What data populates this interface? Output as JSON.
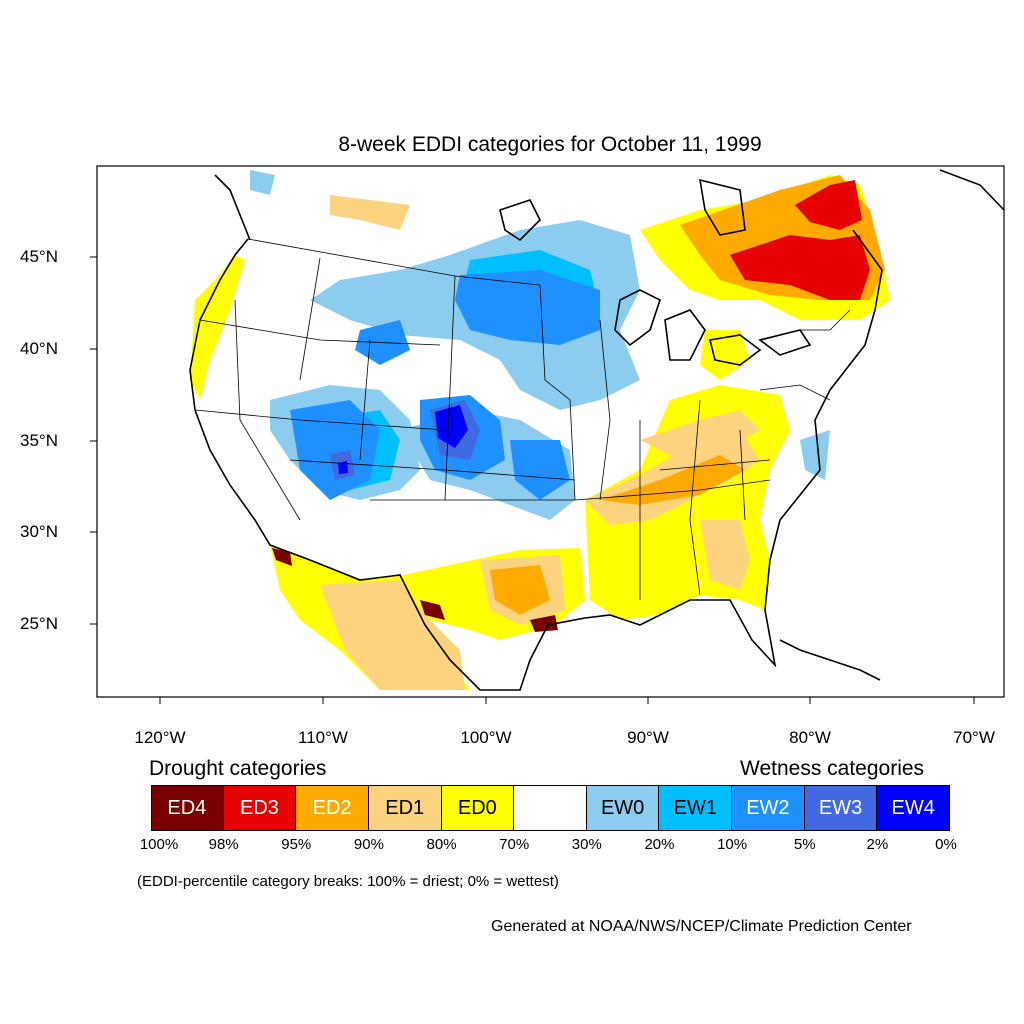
{
  "title": "8-week EDDI categories for October 11, 1999",
  "lat_labels": [
    "45°N",
    "40°N",
    "35°N",
    "30°N",
    "25°N"
  ],
  "lon_labels": [
    "120°W",
    "110°W",
    "100°W",
    "90°W",
    "80°W",
    "70°W"
  ],
  "legend": {
    "drought_heading": "Drought categories",
    "wetness_heading": "Wetness categories",
    "categories": [
      {
        "label": "ED4",
        "color": "#7a0000",
        "text_color": "#ffffff"
      },
      {
        "label": "ED3",
        "color": "#e60000",
        "text_color": "#ffffff"
      },
      {
        "label": "ED2",
        "color": "#ffaa00",
        "text_color": "#ffffff"
      },
      {
        "label": "ED1",
        "color": "#fcd37f",
        "text_color": "#000000"
      },
      {
        "label": "ED0",
        "color": "#ffff00",
        "text_color": "#000000"
      },
      {
        "label": "",
        "color": "#ffffff",
        "text_color": "#000000"
      },
      {
        "label": "EW0",
        "color": "#8ccdef",
        "text_color": "#000000"
      },
      {
        "label": "EW1",
        "color": "#00bfff",
        "text_color": "#000000"
      },
      {
        "label": "EW2",
        "color": "#1e90ff",
        "text_color": "#ffffff"
      },
      {
        "label": "EW3",
        "color": "#4169e1",
        "text_color": "#ffffff"
      },
      {
        "label": "EW4",
        "color": "#0000ff",
        "text_color": "#ffffff"
      }
    ],
    "percent_breaks": [
      "100%",
      "98%",
      "95%",
      "90%",
      "80%",
      "70%",
      "30%",
      "20%",
      "10%",
      "5%",
      "2%",
      "0%"
    ]
  },
  "note": "(EDDI-percentile category breaks: 100% = driest; 0% = wettest)",
  "credit": "Generated at NOAA/NWS/NCEP/Climate Prediction Center"
}
